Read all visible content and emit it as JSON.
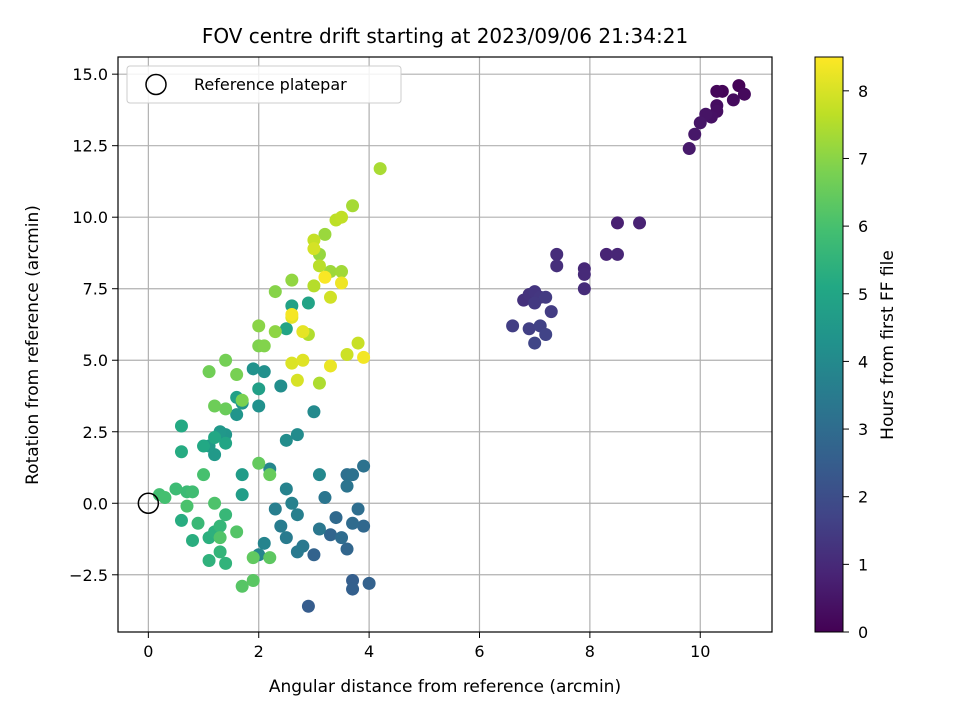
{
  "chart_data": {
    "type": "scatter",
    "title": "FOV centre drift starting at 2023/09/06 21:34:21",
    "xlabel": "Angular distance from reference (arcmin)",
    "ylabel": "Rotation from reference (arcmin)",
    "xlim": [
      -0.55,
      11.3
    ],
    "ylim": [
      -4.5,
      15.6
    ],
    "xticks": [
      0,
      2,
      4,
      6,
      8,
      10
    ],
    "yticks": [
      -2.5,
      0.0,
      2.5,
      5.0,
      7.5,
      10.0,
      12.5,
      15.0
    ],
    "xtick_labels": [
      "0",
      "2",
      "4",
      "6",
      "8",
      "10"
    ],
    "ytick_labels": [
      "−2.5",
      "0.0",
      "2.5",
      "5.0",
      "7.5",
      "10.0",
      "12.5",
      "15.0"
    ],
    "grid": true,
    "legend": {
      "position": "top-left",
      "entries": [
        {
          "label": "Reference platepar",
          "marker": "open-circle"
        }
      ]
    },
    "reference_point": {
      "x": 0,
      "y": 0
    },
    "colorbar": {
      "label": "Hours from first FF file",
      "colormap": "viridis",
      "range": [
        0,
        8.5
      ],
      "ticks": [
        0,
        1,
        2,
        3,
        4,
        5,
        6,
        7,
        8
      ],
      "tick_labels": [
        "0",
        "1",
        "2",
        "3",
        "4",
        "5",
        "6",
        "7",
        "8"
      ]
    },
    "points": [
      {
        "x": 10.7,
        "y": 14.6,
        "c": 0.05
      },
      {
        "x": 10.4,
        "y": 14.4,
        "c": 0.1
      },
      {
        "x": 10.3,
        "y": 14.4,
        "c": 0.15
      },
      {
        "x": 10.8,
        "y": 14.3,
        "c": 0.2
      },
      {
        "x": 10.6,
        "y": 14.1,
        "c": 0.25
      },
      {
        "x": 10.3,
        "y": 13.9,
        "c": 0.3
      },
      {
        "x": 10.3,
        "y": 13.7,
        "c": 0.35
      },
      {
        "x": 10.2,
        "y": 13.5,
        "c": 0.4
      },
      {
        "x": 10.1,
        "y": 13.6,
        "c": 0.45
      },
      {
        "x": 10.0,
        "y": 13.3,
        "c": 0.5
      },
      {
        "x": 9.9,
        "y": 12.9,
        "c": 0.55
      },
      {
        "x": 9.8,
        "y": 12.4,
        "c": 0.6
      },
      {
        "x": 8.5,
        "y": 9.8,
        "c": 0.75
      },
      {
        "x": 8.9,
        "y": 9.8,
        "c": 0.8
      },
      {
        "x": 8.3,
        "y": 8.7,
        "c": 0.85
      },
      {
        "x": 8.5,
        "y": 8.7,
        "c": 0.9
      },
      {
        "x": 7.9,
        "y": 8.2,
        "c": 0.95
      },
      {
        "x": 7.9,
        "y": 8.0,
        "c": 1.0
      },
      {
        "x": 7.9,
        "y": 7.5,
        "c": 1.05
      },
      {
        "x": 7.4,
        "y": 8.7,
        "c": 1.1
      },
      {
        "x": 7.4,
        "y": 8.3,
        "c": 1.15
      },
      {
        "x": 6.8,
        "y": 7.1,
        "c": 1.2
      },
      {
        "x": 6.9,
        "y": 7.3,
        "c": 1.25
      },
      {
        "x": 7.0,
        "y": 7.4,
        "c": 1.3
      },
      {
        "x": 7.1,
        "y": 7.2,
        "c": 1.35
      },
      {
        "x": 7.0,
        "y": 7.0,
        "c": 1.4
      },
      {
        "x": 7.2,
        "y": 7.2,
        "c": 1.45
      },
      {
        "x": 7.3,
        "y": 6.7,
        "c": 1.5
      },
      {
        "x": 6.6,
        "y": 6.2,
        "c": 1.55
      },
      {
        "x": 6.9,
        "y": 6.1,
        "c": 1.6
      },
      {
        "x": 7.1,
        "y": 6.2,
        "c": 1.65
      },
      {
        "x": 7.2,
        "y": 5.9,
        "c": 1.7
      },
      {
        "x": 7.0,
        "y": 5.6,
        "c": 1.75
      },
      {
        "x": 2.9,
        "y": -3.6,
        "c": 2.5
      },
      {
        "x": 3.7,
        "y": -2.7,
        "c": 2.55
      },
      {
        "x": 3.7,
        "y": -3.0,
        "c": 2.6
      },
      {
        "x": 4.0,
        "y": -2.8,
        "c": 2.65
      },
      {
        "x": 3.0,
        "y": -1.8,
        "c": 2.7
      },
      {
        "x": 3.3,
        "y": -1.1,
        "c": 2.75
      },
      {
        "x": 3.6,
        "y": -1.6,
        "c": 2.8
      },
      {
        "x": 3.9,
        "y": -0.8,
        "c": 2.85
      },
      {
        "x": 3.4,
        "y": -0.5,
        "c": 2.9
      },
      {
        "x": 3.7,
        "y": -0.7,
        "c": 2.95
      },
      {
        "x": 3.5,
        "y": -1.2,
        "c": 3.0
      },
      {
        "x": 3.8,
        "y": -0.2,
        "c": 3.05
      },
      {
        "x": 3.6,
        "y": 1.0,
        "c": 3.1
      },
      {
        "x": 3.7,
        "y": 1.0,
        "c": 3.15
      },
      {
        "x": 3.9,
        "y": 1.3,
        "c": 3.2
      },
      {
        "x": 3.6,
        "y": 0.6,
        "c": 3.25
      },
      {
        "x": 3.2,
        "y": 0.2,
        "c": 3.3
      },
      {
        "x": 3.1,
        "y": -0.9,
        "c": 3.35
      },
      {
        "x": 2.8,
        "y": -1.5,
        "c": 3.4
      },
      {
        "x": 2.7,
        "y": -1.7,
        "c": 3.45
      },
      {
        "x": 2.5,
        "y": -1.2,
        "c": 3.5
      },
      {
        "x": 2.4,
        "y": -0.8,
        "c": 3.55
      },
      {
        "x": 2.3,
        "y": -0.2,
        "c": 3.6
      },
      {
        "x": 2.7,
        "y": -0.4,
        "c": 3.65
      },
      {
        "x": 2.6,
        "y": 0.0,
        "c": 3.7
      },
      {
        "x": 2.5,
        "y": 0.5,
        "c": 3.75
      },
      {
        "x": 2.1,
        "y": -1.4,
        "c": 3.8
      },
      {
        "x": 2.0,
        "y": -1.8,
        "c": 3.85
      },
      {
        "x": 2.2,
        "y": 1.2,
        "c": 3.9
      },
      {
        "x": 3.1,
        "y": 1.0,
        "c": 3.95
      },
      {
        "x": 3.0,
        "y": 3.2,
        "c": 4.0
      },
      {
        "x": 2.7,
        "y": 2.4,
        "c": 4.05
      },
      {
        "x": 2.5,
        "y": 2.2,
        "c": 4.1
      },
      {
        "x": 2.4,
        "y": 4.1,
        "c": 4.15
      },
      {
        "x": 2.1,
        "y": 4.6,
        "c": 4.2
      },
      {
        "x": 2.0,
        "y": 3.4,
        "c": 4.25
      },
      {
        "x": 1.9,
        "y": 4.7,
        "c": 4.3
      },
      {
        "x": 1.7,
        "y": 3.5,
        "c": 4.35
      },
      {
        "x": 1.6,
        "y": 3.1,
        "c": 4.4
      },
      {
        "x": 1.4,
        "y": 2.4,
        "c": 4.45
      },
      {
        "x": 1.3,
        "y": 2.5,
        "c": 4.5
      },
      {
        "x": 1.2,
        "y": 1.7,
        "c": 4.55
      },
      {
        "x": 1.1,
        "y": 2.0,
        "c": 4.6
      },
      {
        "x": 1.7,
        "y": 1.0,
        "c": 4.65
      },
      {
        "x": 1.7,
        "y": 0.3,
        "c": 4.7
      },
      {
        "x": 2.0,
        "y": 4.0,
        "c": 4.75
      },
      {
        "x": 1.6,
        "y": 3.7,
        "c": 4.8
      },
      {
        "x": 2.6,
        "y": 6.9,
        "c": 4.85
      },
      {
        "x": 2.9,
        "y": 7.0,
        "c": 4.9
      },
      {
        "x": 2.5,
        "y": 6.1,
        "c": 4.95
      },
      {
        "x": 1.4,
        "y": 2.1,
        "c": 5.0
      },
      {
        "x": 1.2,
        "y": 2.3,
        "c": 5.05
      },
      {
        "x": 1.0,
        "y": 2.0,
        "c": 5.1
      },
      {
        "x": 0.6,
        "y": 2.7,
        "c": 5.15
      },
      {
        "x": 0.6,
        "y": 1.8,
        "c": 5.2
      },
      {
        "x": 0.6,
        "y": -0.6,
        "c": 5.25
      },
      {
        "x": 0.8,
        "y": -1.3,
        "c": 5.3
      },
      {
        "x": 1.1,
        "y": -1.2,
        "c": 5.35
      },
      {
        "x": 1.2,
        "y": -1.0,
        "c": 5.4
      },
      {
        "x": 1.1,
        "y": -2.0,
        "c": 5.45
      },
      {
        "x": 1.4,
        "y": -2.1,
        "c": 5.5
      },
      {
        "x": 1.3,
        "y": -1.7,
        "c": 5.55
      },
      {
        "x": 1.3,
        "y": -0.8,
        "c": 5.6
      },
      {
        "x": 1.4,
        "y": -0.4,
        "c": 5.65
      },
      {
        "x": 0.9,
        "y": -0.7,
        "c": 5.7
      },
      {
        "x": 0.7,
        "y": 0.4,
        "c": 5.75
      },
      {
        "x": 0.5,
        "y": 0.5,
        "c": 5.8
      },
      {
        "x": 0.8,
        "y": 0.4,
        "c": 5.85
      },
      {
        "x": 0.2,
        "y": 0.3,
        "c": 5.9
      },
      {
        "x": 0.3,
        "y": 0.2,
        "c": 5.95
      },
      {
        "x": 1.0,
        "y": 1.0,
        "c": 6.0
      },
      {
        "x": 0.7,
        "y": -0.1,
        "c": 6.05
      },
      {
        "x": 1.2,
        "y": 0.0,
        "c": 6.1
      },
      {
        "x": 1.3,
        "y": -1.2,
        "c": 6.15
      },
      {
        "x": 1.6,
        "y": -1.0,
        "c": 6.2
      },
      {
        "x": 1.7,
        "y": -2.9,
        "c": 6.25
      },
      {
        "x": 1.9,
        "y": -2.7,
        "c": 6.3
      },
      {
        "x": 2.2,
        "y": -1.9,
        "c": 6.35
      },
      {
        "x": 1.9,
        "y": -1.9,
        "c": 6.4
      },
      {
        "x": 2.0,
        "y": 1.4,
        "c": 6.45
      },
      {
        "x": 2.2,
        "y": 1.0,
        "c": 6.5
      },
      {
        "x": 1.4,
        "y": 3.3,
        "c": 6.55
      },
      {
        "x": 1.2,
        "y": 3.4,
        "c": 6.6
      },
      {
        "x": 1.1,
        "y": 4.6,
        "c": 6.65
      },
      {
        "x": 1.4,
        "y": 5.0,
        "c": 6.7
      },
      {
        "x": 1.6,
        "y": 4.5,
        "c": 6.75
      },
      {
        "x": 1.7,
        "y": 3.6,
        "c": 6.8
      },
      {
        "x": 2.0,
        "y": 5.5,
        "c": 6.85
      },
      {
        "x": 2.1,
        "y": 5.5,
        "c": 6.9
      },
      {
        "x": 2.3,
        "y": 7.4,
        "c": 6.95
      },
      {
        "x": 2.0,
        "y": 6.2,
        "c": 7.0
      },
      {
        "x": 2.3,
        "y": 6.0,
        "c": 7.05
      },
      {
        "x": 2.6,
        "y": 7.8,
        "c": 7.1
      },
      {
        "x": 3.1,
        "y": 8.7,
        "c": 7.15
      },
      {
        "x": 3.2,
        "y": 9.4,
        "c": 7.2
      },
      {
        "x": 3.3,
        "y": 8.1,
        "c": 7.25
      },
      {
        "x": 3.5,
        "y": 8.1,
        "c": 7.3
      },
      {
        "x": 3.7,
        "y": 10.4,
        "c": 7.35
      },
      {
        "x": 4.2,
        "y": 11.7,
        "c": 7.4
      },
      {
        "x": 3.1,
        "y": 4.2,
        "c": 7.45
      },
      {
        "x": 2.9,
        "y": 5.9,
        "c": 7.5
      },
      {
        "x": 3.0,
        "y": 7.6,
        "c": 7.55
      },
      {
        "x": 3.1,
        "y": 8.3,
        "c": 7.6
      },
      {
        "x": 3.4,
        "y": 9.9,
        "c": 7.65
      },
      {
        "x": 3.5,
        "y": 10.0,
        "c": 7.7
      },
      {
        "x": 3.0,
        "y": 9.2,
        "c": 7.75
      },
      {
        "x": 3.8,
        "y": 5.6,
        "c": 7.8
      },
      {
        "x": 3.6,
        "y": 5.2,
        "c": 7.85
      },
      {
        "x": 3.3,
        "y": 7.2,
        "c": 7.9
      },
      {
        "x": 3.0,
        "y": 8.9,
        "c": 7.95
      },
      {
        "x": 2.7,
        "y": 4.3,
        "c": 8.0
      },
      {
        "x": 2.6,
        "y": 4.9,
        "c": 8.05
      },
      {
        "x": 2.8,
        "y": 5.0,
        "c": 8.1
      },
      {
        "x": 2.6,
        "y": 6.5,
        "c": 8.15
      },
      {
        "x": 2.8,
        "y": 6.0,
        "c": 8.2
      },
      {
        "x": 3.3,
        "y": 4.8,
        "c": 8.25
      },
      {
        "x": 3.5,
        "y": 7.7,
        "c": 8.3
      },
      {
        "x": 3.9,
        "y": 5.1,
        "c": 8.35
      },
      {
        "x": 2.6,
        "y": 6.6,
        "c": 8.4
      },
      {
        "x": 3.2,
        "y": 7.9,
        "c": 8.45
      }
    ]
  }
}
